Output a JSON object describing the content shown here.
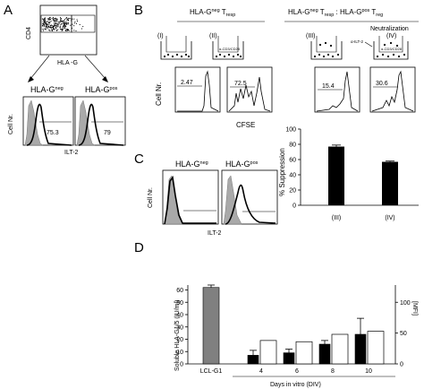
{
  "panels": {
    "A": {
      "letter": "A",
      "dot_plot": {
        "y_label": "CD4",
        "x_label": "HLA -G"
      },
      "histograms": [
        {
          "title": "HLA-G",
          "title_sup": "neg",
          "value": "75.3"
        },
        {
          "title": "HLA-G",
          "title_sup": "pos",
          "value": "79"
        }
      ],
      "y_label": "Cell Nr.",
      "x_label": "ILT-2"
    },
    "B": {
      "letter": "B",
      "group1_title": "HLA-G",
      "group1_sup": "neg",
      "group1_rest": " T",
      "group1_sub": "resp",
      "group2_title": "HLA-G",
      "group2_sup": "neg",
      "group2_mid": " T",
      "group2_sub1": "resp",
      "group2_mid2": " : HLA-G",
      "group2_sup2": "pos",
      "group2_end": " T",
      "group2_sub2": "reg",
      "neutralization": "Neutralization",
      "wells": [
        {
          "label": "(I)"
        },
        {
          "label": "(II)",
          "insert_label": "α-CD3/CD28"
        },
        {
          "label": "(III)"
        },
        {
          "label": "(IV)",
          "side_label": "α-ILT-2",
          "insert_label": "α-CD3/CD28"
        }
      ],
      "histogram_values": [
        "2.47",
        "72.5",
        "15.4",
        "30.6"
      ],
      "y_label": "Cell Nr.",
      "x_label": "CFSE"
    },
    "C": {
      "letter": "C",
      "histograms": [
        {
          "title": "HLA-G",
          "title_sup": "neg"
        },
        {
          "title": "HLA-G",
          "title_sup": "pos"
        }
      ],
      "y_label": "Cell Nr.",
      "x_label": "ILT-2"
    },
    "D": {
      "letter": "D"
    }
  },
  "chart_data": [
    {
      "type": "bar",
      "panel": "B-suppression",
      "categories": [
        "(III)",
        "(IV)"
      ],
      "values": [
        77,
        57
      ],
      "errors": [
        2,
        1
      ],
      "ylabel": "% Suppression",
      "ylim": [
        0,
        100
      ],
      "yticks": [
        0,
        20,
        40,
        60,
        80,
        100
      ],
      "bar_color": "#000000"
    },
    {
      "type": "bar",
      "panel": "D",
      "categories": [
        "LCL-G1",
        "4",
        "6",
        "8",
        "10"
      ],
      "xlabel": "Days in vitro (DIV)",
      "ylabel": "Soluble HLA-G1/5 (IU/ml)",
      "y2label": "[MFI]",
      "yticks": [
        0,
        10,
        20,
        30,
        40,
        50,
        60
      ],
      "y2ticks": [
        0,
        50,
        100
      ],
      "ylim": [
        0,
        64
      ],
      "y2lim": [
        0,
        128
      ],
      "series": [
        {
          "values": [
            62,
            7,
            9,
            16,
            24
          ],
          "errors": [
            2,
            4,
            3,
            3,
            13
          ],
          "colors": [
            "#808080",
            "#000000",
            "#000000",
            "#000000",
            "#000000"
          ],
          "axis": "left"
        },
        {
          "values": [
            null,
            38,
            36,
            48,
            53
          ],
          "fill": "#ffffff",
          "axis": "right"
        }
      ]
    }
  ]
}
